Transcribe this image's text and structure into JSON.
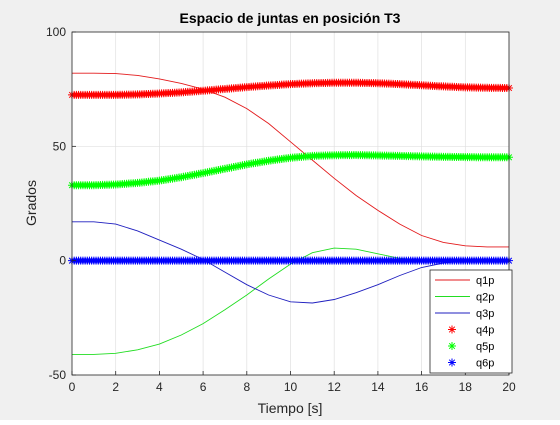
{
  "chart_data": {
    "type": "line",
    "title": "Espacio de juntas en posición T3",
    "xlabel": "Tiempo [s]",
    "ylabel": "Grados",
    "xlim": [
      0,
      20
    ],
    "ylim": [
      -50,
      100
    ],
    "xticks": [
      "0",
      "2",
      "4",
      "6",
      "8",
      "10",
      "12",
      "14",
      "16",
      "18",
      "20"
    ],
    "yticks": [
      "-50",
      "0",
      "50",
      "100"
    ],
    "grid": true,
    "legend_position": "bottom-right",
    "x": [
      0,
      1,
      2,
      3,
      4,
      5,
      6,
      7,
      8,
      9,
      10,
      11,
      12,
      13,
      14,
      15,
      16,
      17,
      18,
      19,
      20
    ],
    "series": [
      {
        "name": "q1p",
        "style": "line",
        "color": "#e31a1c",
        "values": [
          82,
          82,
          81.8,
          81,
          79.5,
          77.5,
          75,
          71.5,
          66.5,
          60,
          52,
          44,
          36,
          28.5,
          22,
          16,
          11,
          8,
          6.5,
          6,
          6
        ]
      },
      {
        "name": "q2p",
        "style": "line",
        "color": "#22dd22",
        "values": [
          -41,
          -41,
          -40.5,
          -39,
          -36.5,
          -32.5,
          -27.5,
          -21.5,
          -15,
          -8,
          -1.5,
          3.5,
          5.5,
          5,
          3,
          1,
          0,
          0,
          0,
          0,
          0
        ]
      },
      {
        "name": "q3p",
        "style": "line",
        "color": "#1f1fbf",
        "values": [
          17,
          17,
          16,
          13,
          9,
          5,
          0.5,
          -5,
          -10.5,
          -15,
          -18,
          -18.5,
          -17,
          -14,
          -10.5,
          -6.5,
          -3,
          -1,
          0,
          0,
          0
        ]
      },
      {
        "name": "q4p",
        "style": "marker",
        "marker": "*",
        "color": "#ff0000",
        "values": [
          72.5,
          72.5,
          72.5,
          72.7,
          73.1,
          73.6,
          74.3,
          75.1,
          75.9,
          76.6,
          77.2,
          77.6,
          77.8,
          77.8,
          77.6,
          77.2,
          76.7,
          76.2,
          75.8,
          75.6,
          75.5
        ]
      },
      {
        "name": "q5p",
        "style": "marker",
        "marker": "*",
        "color": "#00ff00",
        "values": [
          33,
          33,
          33.3,
          34,
          35,
          36.5,
          38.3,
          40.2,
          42.1,
          43.7,
          45,
          45.8,
          46.1,
          46.2,
          46,
          45.8,
          45.6,
          45.4,
          45.3,
          45.2,
          45.2
        ]
      },
      {
        "name": "q6p",
        "style": "marker",
        "marker": "*",
        "color": "#0000ff",
        "values": [
          0,
          0,
          0,
          0,
          0,
          0,
          0,
          0,
          0,
          0,
          0,
          0,
          0,
          0,
          0,
          0,
          0,
          0,
          0,
          0,
          0
        ]
      }
    ]
  }
}
